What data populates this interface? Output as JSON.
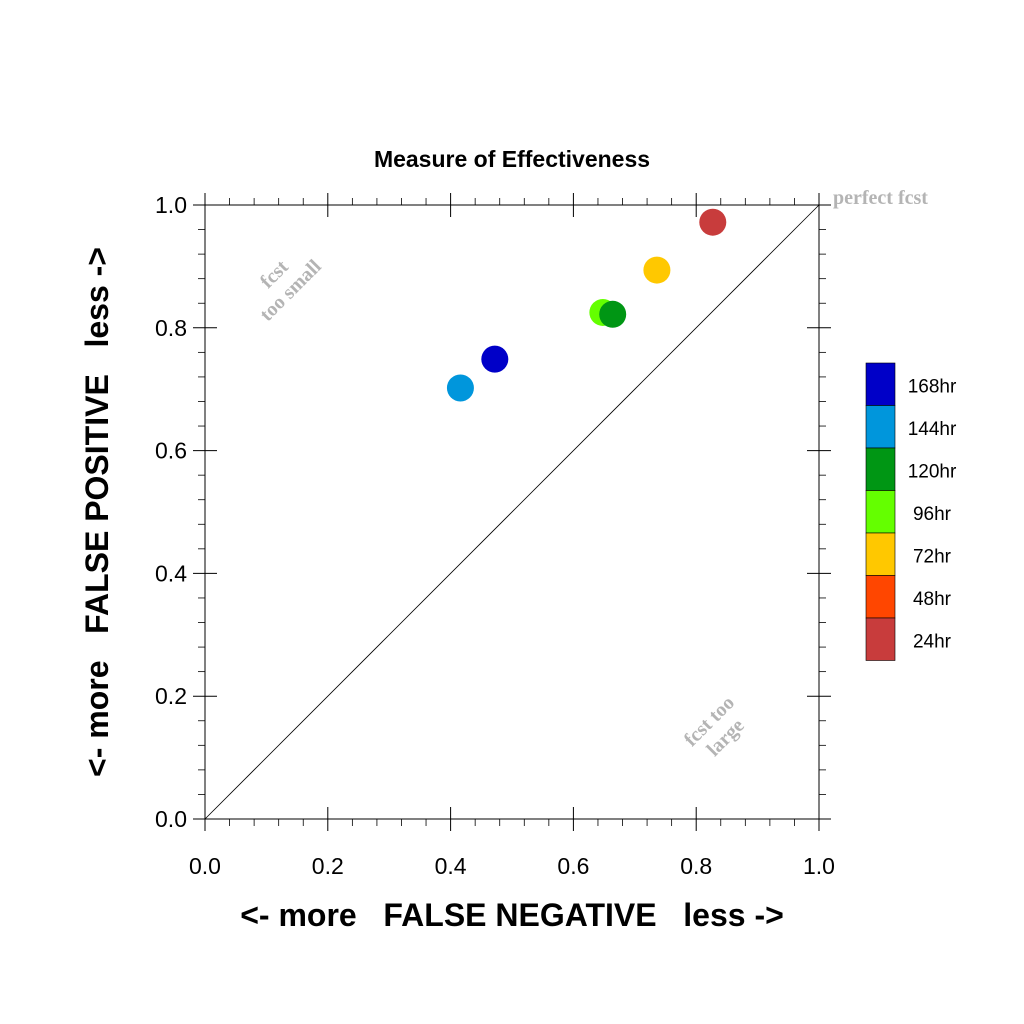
{
  "chart_data": {
    "type": "scatter",
    "title": "Measure of Effectiveness",
    "xlabel": "<- more   FALSE NEGATIVE   less ->",
    "ylabel": "<- more   FALSE POSITIVE   less ->",
    "xlim": [
      0.0,
      1.0
    ],
    "ylim": [
      0.0,
      1.0
    ],
    "xticks": [
      "0.0",
      "0.2",
      "0.4",
      "0.6",
      "0.8",
      "1.0"
    ],
    "yticks": [
      "0.0",
      "0.2",
      "0.4",
      "0.6",
      "0.8",
      "1.0"
    ],
    "grid": false,
    "reference_line": "y = x",
    "legend_position": "right",
    "annotations": {
      "perfect": "perfect fcst",
      "small_line1": "fcst",
      "small_line2": "too small",
      "large_line1": "fcst too",
      "large_line2": "large"
    },
    "points": [
      {
        "name": "168hr",
        "x": 0.472,
        "y": 0.749,
        "color": "#0000c8"
      },
      {
        "name": "144hr",
        "x": 0.416,
        "y": 0.702,
        "color": "#0096dc"
      },
      {
        "name": "96hr",
        "x": 0.648,
        "y": 0.825,
        "color": "#64ff00"
      },
      {
        "name": "120hr",
        "x": 0.664,
        "y": 0.822,
        "color": "#009614"
      },
      {
        "name": "72hr",
        "x": 0.736,
        "y": 0.894,
        "color": "#ffc800"
      },
      {
        "name": "24hr",
        "x": 0.827,
        "y": 0.972,
        "color": "#c83c3c"
      }
    ],
    "legend": [
      {
        "label": "168hr",
        "color": "#0000c8"
      },
      {
        "label": "144hr",
        "color": "#0096dc"
      },
      {
        "label": "120hr",
        "color": "#009614"
      },
      {
        "label": "96hr",
        "color": "#64ff00"
      },
      {
        "label": "72hr",
        "color": "#ffc800"
      },
      {
        "label": "48hr",
        "color": "#ff4600"
      },
      {
        "label": "24hr",
        "color": "#c83c3c"
      }
    ]
  }
}
